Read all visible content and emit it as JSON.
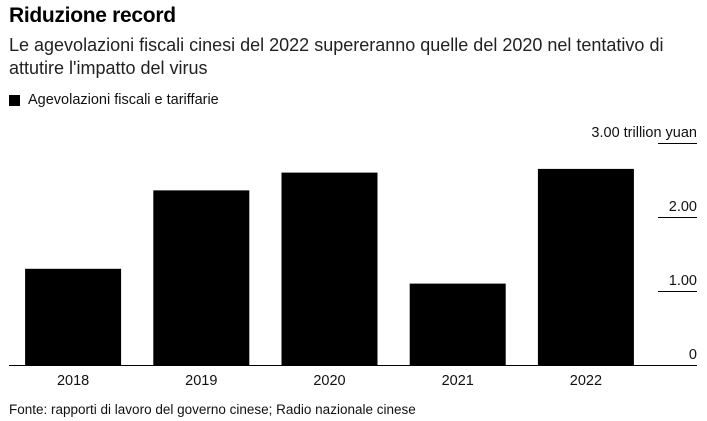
{
  "title": "Riduzione record",
  "subtitle": "Le agevolazioni fiscali cinesi del 2022 supereranno quelle del 2020 nel tentativo di attutire l'impatto del virus",
  "source": "Fonte: rapporti di lavoro del governo cinese; Radio nazionale cinese",
  "colors": {
    "bar": "#000000",
    "axis": "#000000",
    "text": "#111111"
  },
  "chart_data": {
    "type": "bar",
    "categories": [
      "2018",
      "2019",
      "2020",
      "2021",
      "2022"
    ],
    "series": [
      {
        "name": "Agevolazioni fiscali e tariffarie",
        "values": [
          1.3,
          2.36,
          2.6,
          1.1,
          2.65
        ]
      }
    ],
    "yticks": [
      {
        "value": 0,
        "label": "0"
      },
      {
        "value": 1,
        "label": "1.00"
      },
      {
        "value": 2,
        "label": "2.00"
      },
      {
        "value": 3,
        "label": "3.00 trillion yuan"
      }
    ],
    "ylim": [
      0,
      3
    ],
    "grid": false,
    "legend": "top-left"
  }
}
